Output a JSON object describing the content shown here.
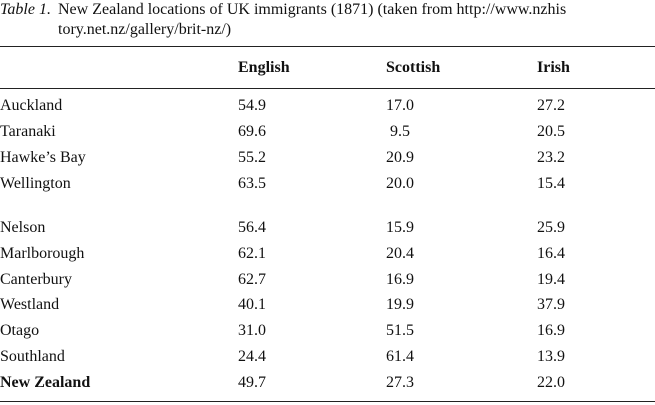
{
  "caption": {
    "label": "Table 1.",
    "line1": "New Zealand locations of UK immigrants (1871) (taken from http://www.nzhis",
    "line2": "tory.net.nz/gallery/brit-nz/)"
  },
  "table": {
    "headers": [
      "English",
      "Scottish",
      "Irish"
    ],
    "rows": [
      {
        "region": "Auckland",
        "english": "54.9",
        "scottish": "17.0",
        "irish": "27.2"
      },
      {
        "region": "Taranaki",
        "english": "69.6",
        "scottish": " 9.5",
        "irish": "20.5"
      },
      {
        "region": "Hawke’s Bay",
        "english": "55.2",
        "scottish": "20.9",
        "irish": "23.2"
      },
      {
        "region": "Wellington",
        "english": "63.5",
        "scottish": "20.0",
        "irish": "15.4"
      },
      {
        "region": "Nelson",
        "english": "56.4",
        "scottish": "15.9",
        "irish": "25.9"
      },
      {
        "region": "Marlborough",
        "english": "62.1",
        "scottish": "20.4",
        "irish": "16.4"
      },
      {
        "region": "Canterbury",
        "english": "62.7",
        "scottish": "16.9",
        "irish": "19.4"
      },
      {
        "region": "Westland",
        "english": "40.1",
        "scottish": "19.9",
        "irish": "37.9"
      },
      {
        "region": "Otago",
        "english": "31.0",
        "scottish": "51.5",
        "irish": "16.9"
      },
      {
        "region": "Southland",
        "english": "24.4",
        "scottish": "61.4",
        "irish": "13.9"
      }
    ],
    "total": {
      "region": "New Zealand",
      "english": "49.7",
      "scottish": "27.3",
      "irish": "22.0"
    }
  }
}
